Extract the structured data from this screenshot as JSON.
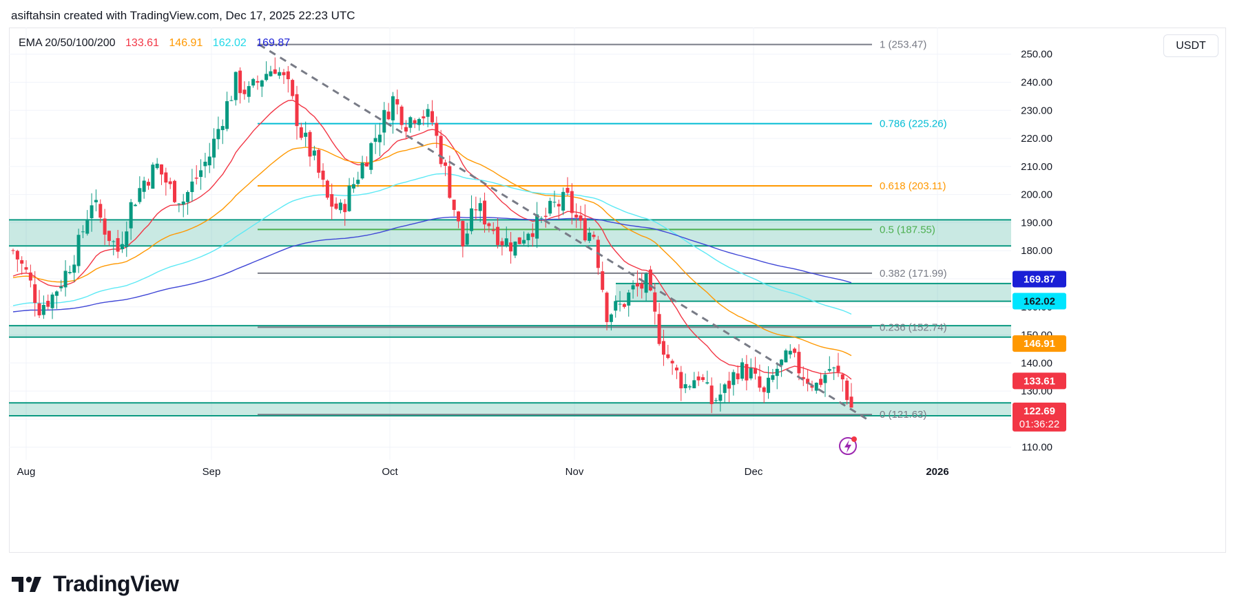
{
  "header": {
    "credit": "asiftahsin created with TradingView.com, Dec 17, 2025 22:23 UTC"
  },
  "legend": {
    "label": "EMA 20/50/100/200",
    "values": [
      {
        "text": "133.61",
        "color": "#f23645"
      },
      {
        "text": "146.91",
        "color": "#ff9800"
      },
      {
        "text": "162.02",
        "color": "#21d8e8"
      },
      {
        "text": "169.87",
        "color": "#1a1fd6"
      }
    ]
  },
  "currency": "USDT",
  "brand": {
    "name": "TradingView",
    "icon": "tradingview-logo-icon"
  },
  "colors": {
    "up": "#089981",
    "down": "#f23645",
    "zone_fill": "rgba(8,153,129,0.22)",
    "zone_line": "#089981",
    "ema20": "#f23645",
    "ema50": "#ff9800",
    "ema100": "#5ce9f5",
    "ema200": "#3f46d6",
    "trendline": "#787b86",
    "grid": "#f0f3fa"
  },
  "chart_data": {
    "type": "candlestick",
    "x_ticks": [
      "Aug",
      "Sep",
      "Oct",
      "Nov",
      "Dec",
      "2026"
    ],
    "y_ticks": [
      "110.00",
      "120.00",
      "130.00",
      "140.00",
      "150.00",
      "160.00",
      "170.00",
      "180.00",
      "190.00",
      "200.00",
      "210.00",
      "220.00",
      "230.00",
      "240.00",
      "250.00"
    ],
    "ylim": [
      105.5,
      259.5
    ],
    "fib_levels": [
      {
        "ratio": "1",
        "price": 253.47,
        "label": "1 (253.47)",
        "color": "#787b86"
      },
      {
        "ratio": "0.786",
        "price": 225.26,
        "label": "0.786 (225.26)",
        "color": "#00bcd4"
      },
      {
        "ratio": "0.618",
        "price": 203.11,
        "label": "0.618 (203.11)",
        "color": "#ff9800"
      },
      {
        "ratio": "0.5",
        "price": 187.55,
        "label": "0.5 (187.55)",
        "color": "#4caf50"
      },
      {
        "ratio": "0.382",
        "price": 171.99,
        "label": "0.382 (171.99)",
        "color": "#787b86"
      },
      {
        "ratio": "0.236",
        "price": 152.74,
        "label": "0.236 (152.74)",
        "color": "#787b86"
      },
      {
        "ratio": "0",
        "price": 121.63,
        "label": "0 (121.63)",
        "color": "#787b86"
      }
    ],
    "zones": [
      {
        "top": 191.0,
        "bottom": 181.7
      },
      {
        "top": 168.3,
        "bottom": 162.0
      },
      {
        "top": 153.3,
        "bottom": 149.2
      },
      {
        "top": 125.8,
        "bottom": 121.2
      }
    ],
    "price_labels": [
      {
        "text": "169.87",
        "bg": "#1a1fd6",
        "fg": "#ffffff",
        "price": 169.87
      },
      {
        "text": "162.02",
        "bg": "#00e5ff",
        "fg": "#131722",
        "price": 162.02
      },
      {
        "text": "146.91",
        "bg": "#ff9800",
        "fg": "#ffffff",
        "price": 146.91
      },
      {
        "text": "133.61",
        "bg": "#f23645",
        "fg": "#ffffff",
        "price": 133.61
      },
      {
        "text": "122.69",
        "bg": "#f23645",
        "fg": "#ffffff",
        "price": 122.69,
        "sub": "01:36:22"
      }
    ],
    "ema_last": {
      "ema20": 133.61,
      "ema50": 146.91,
      "ema100": 162.02,
      "ema200": 169.87
    },
    "last_price": 122.69
  }
}
